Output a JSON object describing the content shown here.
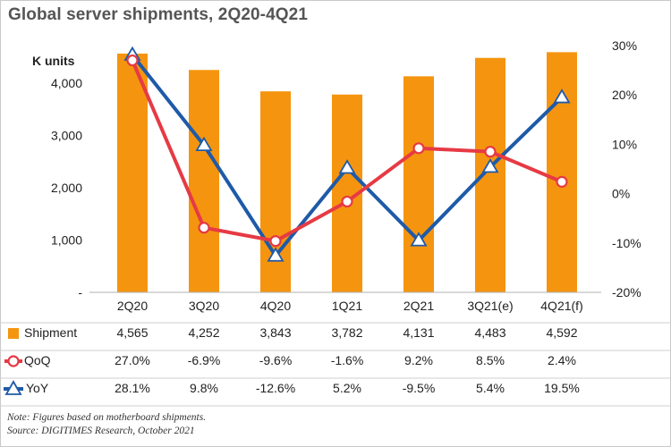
{
  "title": "Global server shipments, 2Q20-4Q21",
  "chart_data": {
    "type": "bar",
    "title": "Global server shipments, 2Q20-4Q21",
    "categories": [
      "2Q20",
      "3Q20",
      "4Q20",
      "1Q21",
      "2Q21",
      "3Q21(e)",
      "4Q21(f)"
    ],
    "y_left": {
      "label": "K units",
      "ylim": [
        0,
        4500
      ],
      "ticks": [
        0,
        1000,
        2000,
        3000,
        4000
      ],
      "tick_labels": [
        "-",
        "1,000",
        "2,000",
        "3,000",
        "4,000"
      ]
    },
    "y_right": {
      "ylim": [
        -20,
        30
      ],
      "ticks": [
        -20,
        -10,
        0,
        10,
        20,
        30
      ],
      "tick_labels": [
        "-20%",
        "-10%",
        "0%",
        "10%",
        "20%",
        "30%"
      ]
    },
    "series": [
      {
        "name": "Shipment",
        "type": "bar",
        "axis": "left",
        "color": "#f5950f",
        "values": [
          4565,
          4252,
          3843,
          3782,
          4131,
          4483,
          4592
        ],
        "labels": [
          "4,565",
          "4,252",
          "3,843",
          "3,782",
          "4,131",
          "4,483",
          "4,592"
        ]
      },
      {
        "name": "QoQ",
        "type": "line",
        "axis": "right",
        "color": "#e63a44",
        "marker": "circle",
        "values": [
          27.0,
          -6.9,
          -9.6,
          -1.6,
          9.2,
          8.5,
          2.4
        ],
        "labels": [
          "27.0%",
          "-6.9%",
          "-9.6%",
          "-1.6%",
          "9.2%",
          "8.5%",
          "2.4%"
        ]
      },
      {
        "name": "YoY",
        "type": "line",
        "axis": "right",
        "color": "#1f5aa8",
        "marker": "triangle",
        "values": [
          28.1,
          9.8,
          -12.6,
          5.2,
          -9.5,
          5.4,
          19.5
        ],
        "labels": [
          "28.1%",
          "9.8%",
          "-12.6%",
          "5.2%",
          "-9.5%",
          "5.4%",
          "19.5%"
        ]
      }
    ],
    "grid": false,
    "legend": "table-below"
  },
  "notes": {
    "line1": "Note: Figures based on motherboard shipments.",
    "line2": "Source: DIGITIMES Research, October 2021"
  }
}
